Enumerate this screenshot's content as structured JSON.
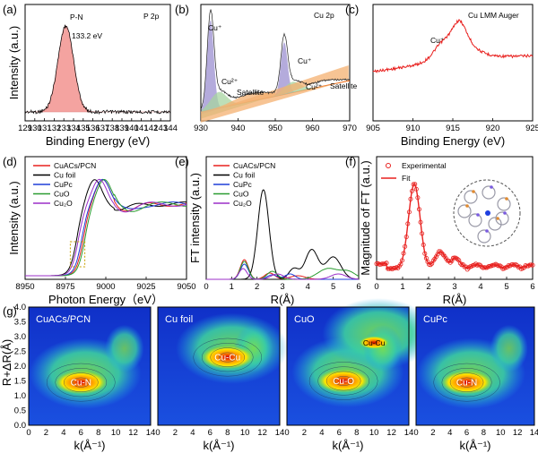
{
  "chart_data": [
    {
      "panel": "(a)",
      "type": "line",
      "title": "P 2p",
      "xlabel": "Binding Energy (eV)",
      "ylabel": "Intensity (a.u.)",
      "xlim": [
        129,
        144
      ],
      "xticks": [
        129,
        130,
        131,
        132,
        133,
        134,
        135,
        136,
        137,
        138,
        139,
        140,
        141,
        142,
        143,
        144
      ],
      "xtick_labels": [
        "129",
        "130",
        "131",
        "132",
        "133",
        "134",
        "135",
        "136",
        "137",
        "138",
        "139",
        "140",
        "141",
        "142",
        "143",
        "144"
      ],
      "annotations": [
        "P-N",
        "133.2 eV"
      ],
      "series": [
        {
          "name": "P-N fit",
          "color": "#f4a3a0",
          "peak_center": 133.2,
          "fwhm": 1.9
        }
      ]
    },
    {
      "panel": "(b)",
      "type": "line",
      "title": "Cu 2p",
      "xlabel": "",
      "ylabel": "",
      "xlim": [
        930,
        970
      ],
      "xticks": [
        930,
        940,
        950,
        960,
        970
      ],
      "xtick_labels": [
        "930",
        "940",
        "950",
        "960",
        "970"
      ],
      "annotations": [
        "Cu⁺",
        "Cu²⁺",
        "Satellite",
        "Cu⁺",
        "Cu²⁺",
        "Satellite"
      ],
      "series": [
        {
          "name": "Cu⁺ 2p3/2",
          "center": 932.6,
          "color": "#9b8fd0"
        },
        {
          "name": "Cu²⁺ 2p3/2",
          "center": 934.8,
          "color": "#a7d4a0"
        },
        {
          "name": "Satellite 1",
          "center": 943.5,
          "color": "#f4b070"
        },
        {
          "name": "Cu⁺ 2p1/2",
          "center": 952.4,
          "color": "#9b8fd0"
        },
        {
          "name": "Cu²⁺ 2p1/2",
          "center": 954.6,
          "color": "#a7d4a0"
        },
        {
          "name": "Satellite 2",
          "center": 962.5,
          "color": "#f4b070"
        }
      ]
    },
    {
      "panel": "(c)",
      "type": "line",
      "title": "Cu LMM Auger",
      "xlabel": "Binding Energy (eV)",
      "ylabel": "",
      "xlim": [
        905,
        925
      ],
      "xticks": [
        905,
        910,
        915,
        920,
        925
      ],
      "xtick_labels": [
        "905",
        "910",
        "915",
        "920",
        "925"
      ],
      "annotations": [
        "Cu⁺"
      ],
      "series": [
        {
          "name": "Cu LMM",
          "color": "#e8201e",
          "peak": 915.8
        }
      ]
    },
    {
      "panel": "(d)",
      "type": "line",
      "xlabel": "Photon Energy（eV）",
      "ylabel": "Intensity (a.u.)",
      "xlim": [
        8950,
        9050
      ],
      "xticks": [
        8950,
        8975,
        9000,
        9025,
        9050
      ],
      "xtick_labels": [
        "8950",
        "8975",
        "9000",
        "9025",
        "9050"
      ],
      "legend": [
        "CuACs/PCN",
        "Cu foil",
        "CuPc",
        "CuO",
        "Cu₂O"
      ],
      "series": [
        {
          "name": "CuACs/PCN",
          "color": "#e8201e",
          "edge": 8986,
          "whiteline": 8998
        },
        {
          "name": "Cu foil",
          "color": "#000000",
          "edge": 8982,
          "whiteline": 8993
        },
        {
          "name": "CuPc",
          "color": "#1f3fd8",
          "edge": 8985,
          "whiteline": 8998
        },
        {
          "name": "CuO",
          "color": "#2a9c30",
          "edge": 8987,
          "whiteline": 8999
        },
        {
          "name": "Cu₂O",
          "color": "#9b2fc8",
          "edge": 8983,
          "whiteline": 8996
        }
      ]
    },
    {
      "panel": "(e)",
      "type": "line",
      "xlabel": "R(Å)",
      "ylabel": "FT intensity (a.u.)",
      "xlim": [
        0,
        6
      ],
      "xticks": [
        0,
        1,
        2,
        3,
        4,
        5,
        6
      ],
      "xtick_labels": [
        "0",
        "1",
        "2",
        "3",
        "4",
        "5",
        "6"
      ],
      "legend": [
        "CuACs/PCN",
        "Cu foil",
        "CuPc",
        "CuO",
        "Cu₂O"
      ],
      "series": [
        {
          "name": "CuACs/PCN",
          "color": "#e8201e",
          "peak_R": 1.5
        },
        {
          "name": "Cu foil",
          "color": "#000000",
          "peak_R": 2.25
        },
        {
          "name": "CuPc",
          "color": "#1f3fd8",
          "peak_R": 1.5
        },
        {
          "name": "CuO",
          "color": "#2a9c30",
          "peak_R": 1.5
        },
        {
          "name": "Cu₂O",
          "color": "#9b2fc8",
          "peak_R": 1.45
        }
      ]
    },
    {
      "panel": "(f)",
      "type": "line",
      "xlabel": "R(Å)",
      "ylabel": "Magnitude of FT (a.u.)",
      "xlim": [
        0,
        6
      ],
      "xticks": [
        0,
        1,
        2,
        3,
        4,
        5,
        6
      ],
      "xtick_labels": [
        "0",
        "1",
        "2",
        "3",
        "4",
        "5",
        "6"
      ],
      "legend": [
        "Experimental",
        "Fit"
      ],
      "series": [
        {
          "name": "Experimental",
          "color": "#e8201e",
          "marker": "open-circle",
          "peak_R": 1.45
        },
        {
          "name": "Fit",
          "color": "#e8201e",
          "peak_R": 1.45
        }
      ]
    },
    {
      "panel": "(g)",
      "type": "heatmap",
      "xlabel": "k(Å⁻¹)",
      "ylabel": "R+ΔR(Å)",
      "xlim": [
        0,
        14
      ],
      "ylim": [
        0.0,
        4.0
      ],
      "xticks": [
        0,
        2,
        4,
        6,
        8,
        10,
        12,
        14
      ],
      "xtick_labels": [
        "0",
        "2",
        "4",
        "6",
        "8",
        "10",
        "12",
        "14"
      ],
      "yticks": [
        0.0,
        0.5,
        1.0,
        1.5,
        2.0,
        2.5,
        3.0,
        3.5,
        4.0
      ],
      "ytick_labels": [
        "0.0",
        "0.5",
        "1.0",
        "1.5",
        "2.0",
        "2.5",
        "3.0",
        "3.5",
        "4.0"
      ],
      "maps": [
        {
          "title": "CuACs/PCN",
          "labels": [
            "Cu-N"
          ],
          "maxima": [
            {
              "k": 6,
              "R": 1.45
            }
          ]
        },
        {
          "title": "Cu foil",
          "labels": [
            "Cu-Cu"
          ],
          "maxima": [
            {
              "k": 8,
              "R": 2.3
            }
          ]
        },
        {
          "title": "CuO",
          "labels": [
            "Cu-O",
            "Cu-Cu"
          ],
          "maxima": [
            {
              "k": 6.5,
              "R": 1.5
            },
            {
              "k": 10,
              "R": 2.8
            }
          ]
        },
        {
          "title": "CuPc",
          "labels": [
            "Cu-N"
          ],
          "maxima": [
            {
              "k": 6,
              "R": 1.45
            }
          ]
        }
      ]
    }
  ],
  "panel_labels": [
    "(a)",
    "(b)",
    "(c)",
    "(d)",
    "(e)",
    "(f)",
    "(g)"
  ],
  "colors": {
    "red": "#e8201e",
    "black": "#000000",
    "blue": "#1f3fd8",
    "green": "#2a9c30",
    "purple": "#9b2fc8"
  }
}
